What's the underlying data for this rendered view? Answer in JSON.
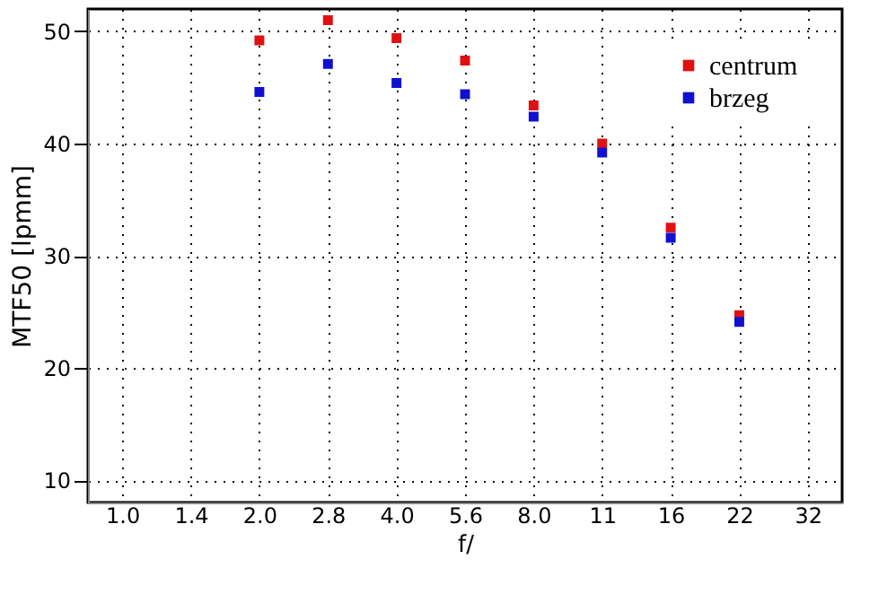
{
  "chart_data": {
    "type": "scatter",
    "xlabel": "f/",
    "ylabel": "MTF50 [lpmm]",
    "categories": [
      "1.0",
      "1.4",
      "2.0",
      "2.8",
      "4.0",
      "5.6",
      "8.0",
      "11",
      "16",
      "22",
      "32"
    ],
    "series": [
      {
        "name": "centrum",
        "color": "#e01010",
        "values": [
          null,
          null,
          49.2,
          51.0,
          49.4,
          47.4,
          43.4,
          40.0,
          32.5,
          24.7,
          null
        ]
      },
      {
        "name": "brzeg",
        "color": "#1010d0",
        "values": [
          null,
          null,
          44.6,
          47.1,
          45.4,
          44.4,
          42.4,
          39.2,
          31.6,
          24.1,
          null
        ]
      }
    ],
    "ylim": [
      8,
      52
    ],
    "yticks": [
      10,
      20,
      30,
      40,
      50
    ],
    "grid": true,
    "legend": "top right",
    "marker": "square"
  }
}
